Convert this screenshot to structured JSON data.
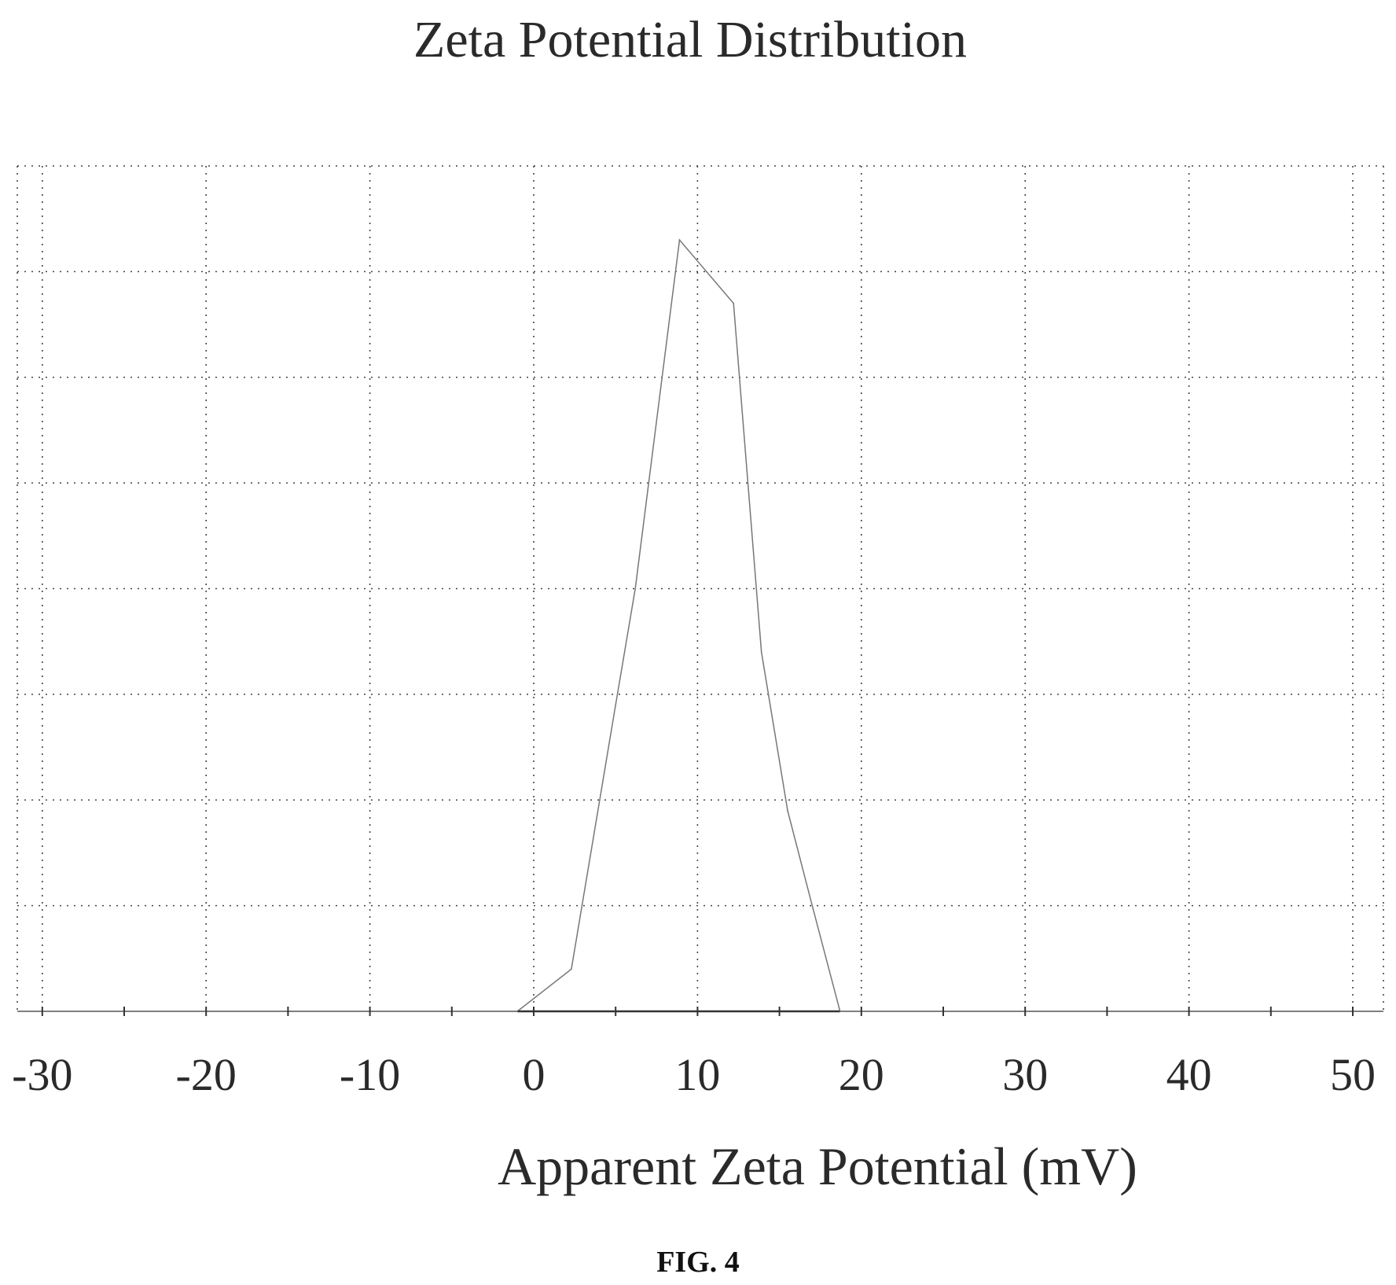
{
  "chart_data": {
    "type": "line",
    "title": "Zeta Potential Distribution",
    "xlabel": "Apparent Zeta Potential (mV)",
    "ylabel": "",
    "caption": "FIG. 4",
    "xlim": [
      -32,
      52
    ],
    "ylim": [
      0,
      8
    ],
    "x_ticks": [
      -30,
      -20,
      -10,
      0,
      10,
      20,
      30,
      40,
      50
    ],
    "x_tick_labels": [
      "-30",
      "-20",
      "-10",
      "0",
      "10",
      "20",
      "30",
      "40",
      "50"
    ],
    "y_tick_labels": [],
    "grid": true,
    "legend": "none",
    "series": [
      {
        "x": [
          -1,
          2.3,
          5,
          6.2,
          8.9,
          12.2,
          13.9,
          15.5,
          17,
          18.7
        ],
        "y": [
          0,
          0.4,
          2.9,
          4,
          7.3,
          6.7,
          3.4,
          1.9,
          1,
          0
        ]
      }
    ],
    "colors": {
      "line": "#777777",
      "grid": "#444444",
      "text": "#2a2a2a"
    }
  }
}
